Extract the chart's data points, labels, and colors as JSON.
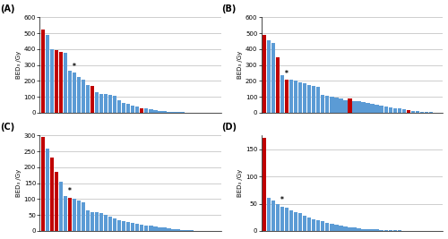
{
  "panels": [
    "A",
    "B",
    "C",
    "D"
  ],
  "ylims": [
    600,
    600,
    300,
    175
  ],
  "yticks_A": [
    0,
    100,
    200,
    300,
    400,
    500,
    600
  ],
  "yticks_B": [
    0,
    100,
    200,
    300,
    400,
    500,
    600
  ],
  "yticks_C": [
    0,
    50,
    100,
    150,
    200,
    250,
    300
  ],
  "yticks_D": [
    0,
    50,
    100,
    150
  ],
  "ylabel": "BED₃ /Gy",
  "data_A": [
    520,
    490,
    400,
    395,
    380,
    375,
    265,
    250,
    225,
    205,
    175,
    170,
    130,
    120,
    115,
    110,
    105,
    80,
    60,
    55,
    45,
    40,
    30,
    25,
    20,
    15,
    12,
    8,
    6,
    4,
    3,
    2,
    1,
    1,
    0,
    0,
    0,
    0,
    0,
    0
  ],
  "colors_A": [
    "red",
    "blue",
    "blue",
    "red",
    "red",
    "blue",
    "blue",
    "blue",
    "blue",
    "blue",
    "blue",
    "red",
    "blue",
    "blue",
    "blue",
    "blue",
    "blue",
    "blue",
    "blue",
    "blue",
    "blue",
    "blue",
    "red",
    "blue",
    "blue",
    "blue",
    "blue",
    "blue",
    "blue",
    "blue",
    "blue",
    "blue",
    "blue",
    "blue",
    "blue",
    "blue",
    "blue",
    "blue",
    "blue",
    "blue"
  ],
  "star_A": 7,
  "data_B": [
    490,
    455,
    440,
    350,
    235,
    205,
    205,
    200,
    190,
    185,
    175,
    170,
    165,
    110,
    105,
    100,
    95,
    90,
    80,
    90,
    75,
    70,
    65,
    60,
    55,
    50,
    45,
    40,
    35,
    30,
    25,
    20,
    15,
    10,
    8,
    5,
    3,
    2,
    1,
    1
  ],
  "colors_B": [
    "red",
    "blue",
    "blue",
    "red",
    "blue",
    "red",
    "blue",
    "blue",
    "blue",
    "blue",
    "blue",
    "blue",
    "blue",
    "blue",
    "blue",
    "blue",
    "blue",
    "blue",
    "blue",
    "red",
    "blue",
    "blue",
    "blue",
    "blue",
    "blue",
    "blue",
    "blue",
    "blue",
    "blue",
    "blue",
    "blue",
    "blue",
    "red",
    "blue",
    "blue",
    "blue",
    "blue",
    "blue",
    "blue",
    "blue"
  ],
  "star_B": 5,
  "data_C": [
    295,
    260,
    230,
    185,
    155,
    110,
    105,
    100,
    95,
    90,
    65,
    60,
    58,
    55,
    50,
    45,
    38,
    35,
    30,
    28,
    25,
    22,
    20,
    18,
    16,
    14,
    12,
    10,
    8,
    6,
    5,
    4,
    3,
    2,
    1,
    0,
    0,
    0,
    0,
    0
  ],
  "colors_C": [
    "red",
    "blue",
    "red",
    "red",
    "blue",
    "blue",
    "red",
    "blue",
    "blue",
    "blue",
    "blue",
    "blue",
    "blue",
    "blue",
    "blue",
    "blue",
    "blue",
    "blue",
    "blue",
    "blue",
    "blue",
    "blue",
    "blue",
    "blue",
    "blue",
    "blue",
    "blue",
    "blue",
    "blue",
    "blue",
    "blue",
    "blue",
    "blue",
    "blue",
    "red",
    "blue",
    "blue",
    "blue",
    "blue",
    "blue"
  ],
  "star_C": 6,
  "data_D": [
    170,
    60,
    55,
    50,
    45,
    42,
    38,
    35,
    32,
    28,
    25,
    22,
    20,
    18,
    15,
    13,
    12,
    10,
    8,
    7,
    6,
    5,
    4,
    4,
    3,
    3,
    2,
    2,
    1,
    1,
    1,
    0,
    0,
    0,
    0,
    0,
    0,
    0,
    0,
    0
  ],
  "colors_D": [
    "red",
    "blue",
    "blue",
    "blue",
    "blue",
    "blue",
    "blue",
    "blue",
    "blue",
    "blue",
    "blue",
    "blue",
    "blue",
    "blue",
    "blue",
    "blue",
    "blue",
    "blue",
    "blue",
    "blue",
    "blue",
    "blue",
    "blue",
    "blue",
    "blue",
    "blue",
    "blue",
    "blue",
    "blue",
    "blue",
    "blue",
    "blue",
    "red",
    "blue",
    "blue",
    "blue",
    "blue",
    "blue",
    "blue",
    "blue"
  ],
  "star_D": 4,
  "blue": "#5B9BD5",
  "red": "#C00000"
}
